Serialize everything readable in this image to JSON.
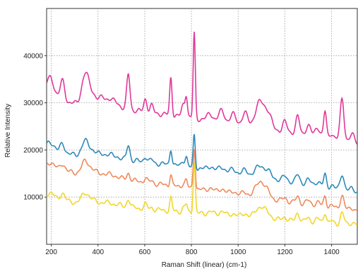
{
  "chart_data": {
    "type": "line",
    "title": "",
    "xlabel": "Raman Shift (linear) (cm-1)",
    "ylabel": "Relative Intensity",
    "xlim": [
      180,
      1510
    ],
    "ylim": [
      0,
      50000
    ],
    "x_ticks": [
      200,
      400,
      600,
      800,
      1000,
      1200,
      1400
    ],
    "y_ticks": [
      10000,
      20000,
      30000,
      40000
    ],
    "grid": true,
    "grid_style": "dotted",
    "legend": "none",
    "baseline_params": {
      "magenta": [
        30500,
        26500,
        21500
      ],
      "blue": [
        19500,
        16000,
        11000
      ],
      "orange": [
        16000,
        11500,
        7000
      ],
      "yellow": [
        9500,
        6500,
        4000
      ]
    },
    "peaks": [
      [
        195,
        1,
        18
      ],
      [
        248,
        1,
        10
      ],
      [
        345,
        1,
        15
      ],
      [
        375,
        0.6,
        18
      ],
      [
        420,
        0.35,
        14
      ],
      [
        450,
        0.4,
        14
      ],
      [
        480,
        0.35,
        14
      ],
      [
        530,
        1,
        7
      ],
      [
        603,
        0.55,
        7
      ],
      [
        630,
        0.45,
        7
      ],
      [
        712,
        1,
        5
      ],
      [
        765,
        0.55,
        7
      ],
      [
        778,
        0.65,
        5
      ],
      [
        812,
        1,
        4.5
      ],
      [
        880,
        0.35,
        12
      ],
      [
        930,
        0.4,
        12
      ],
      [
        980,
        0.25,
        12
      ],
      [
        1030,
        0.3,
        12
      ],
      [
        1095,
        0.8,
        20
      ],
      [
        1130,
        0.4,
        14
      ],
      [
        1200,
        0.35,
        9
      ],
      [
        1255,
        0.55,
        8
      ],
      [
        1300,
        0.4,
        10
      ],
      [
        1340,
        0.35,
        10
      ],
      [
        1372,
        0.7,
        6
      ],
      [
        1400,
        0.3,
        8
      ],
      [
        1445,
        1,
        8
      ],
      [
        1490,
        0.3,
        10
      ]
    ],
    "series": [
      {
        "color": "#e0389a",
        "baseline": "magenta",
        "amps": [
          5000,
          4500,
          6000,
          2500,
          1800,
          1500,
          1200,
          7500,
          2800,
          1500,
          8000,
          2500,
          4500,
          18000,
          1500,
          2500,
          2000,
          2500,
          5500,
          2500,
          2000,
          3500,
          2000,
          2000,
          5500,
          1200,
          9000,
          1500
        ]
      },
      {
        "color": "#2e8ab8",
        "baseline": "blue",
        "amps": [
          2300,
          2200,
          2800,
          1200,
          700,
          600,
          500,
          3200,
          1200,
          600,
          3500,
          1200,
          2000,
          7000,
          800,
          1000,
          800,
          900,
          2300,
          1000,
          900,
          1600,
          900,
          900,
          2600,
          600,
          3500,
          700
        ]
      },
      {
        "color": "#ee8a5e",
        "baseline": "orange",
        "amps": [
          1500,
          1600,
          2500,
          1100,
          600,
          500,
          450,
          1500,
          900,
          500,
          2500,
          900,
          1500,
          9000,
          700,
          900,
          700,
          800,
          3600,
          900,
          800,
          1400,
          800,
          800,
          2300,
          500,
          3000,
          600
        ]
      },
      {
        "color": "#f2d72a",
        "baseline": "yellow",
        "amps": [
          1500,
          1700,
          2000,
          800,
          500,
          400,
          400,
          1800,
          900,
          400,
          2800,
          900,
          1500,
          11000,
          600,
          900,
          600,
          800,
          2500,
          800,
          700,
          1800,
          800,
          800,
          2400,
          500,
          2500,
          600
        ]
      }
    ]
  }
}
